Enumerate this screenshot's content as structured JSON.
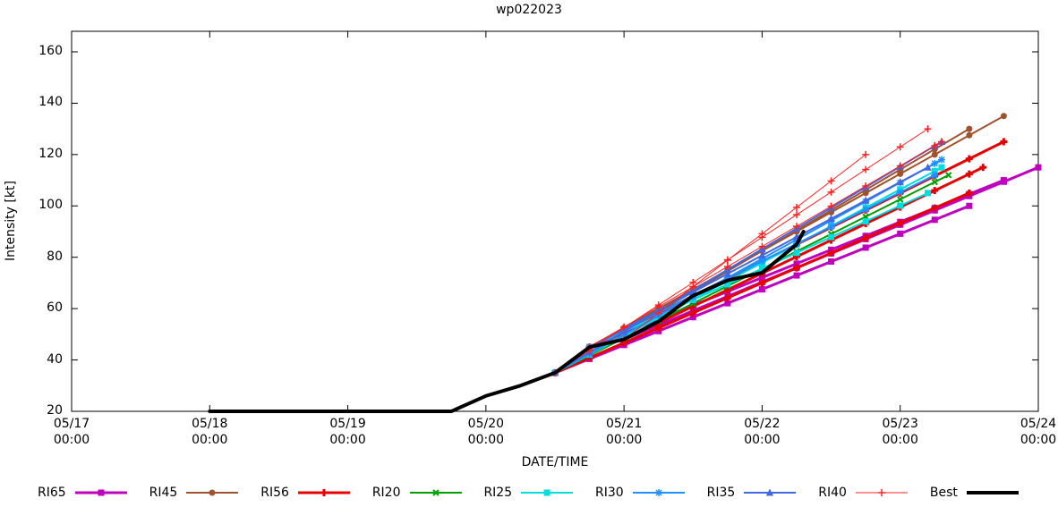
{
  "chart_data": {
    "type": "line",
    "title": "wp022023",
    "xlabel": "DATE/TIME",
    "ylabel": "Intensity [kt]",
    "ylim": [
      20,
      168
    ],
    "xlim_days": [
      "05/17 00:00",
      "05/24 00:00"
    ],
    "grid": false,
    "legend_position": "bottom",
    "marker_step_days": 0.25,
    "y_ticks": [
      20,
      40,
      60,
      80,
      100,
      120,
      140,
      160
    ],
    "x_ticks": [
      {
        "date": "05/17",
        "time": "00:00"
      },
      {
        "date": "05/18",
        "time": "00:00"
      },
      {
        "date": "05/19",
        "time": "00:00"
      },
      {
        "date": "05/20",
        "time": "00:00"
      },
      {
        "date": "05/21",
        "time": "00:00"
      },
      {
        "date": "05/22",
        "time": "00:00"
      },
      {
        "date": "05/23",
        "time": "00:00"
      },
      {
        "date": "05/24",
        "time": "00:00"
      }
    ],
    "series": [
      {
        "name": "RI65",
        "color": "#bf00bf",
        "marker": "square",
        "lw": 3,
        "segments": [
          [
            [
              3.5,
              35
            ],
            [
              6.5,
              100
            ]
          ],
          [
            [
              3.75,
              45
            ],
            [
              6.75,
              110
            ]
          ],
          [
            [
              4.0,
              48
            ],
            [
              7.0,
              115
            ]
          ]
        ]
      },
      {
        "name": "RI45",
        "color": "#a0522d",
        "marker": "circle",
        "lw": 2,
        "segments": [
          [
            [
              3.5,
              35
            ],
            [
              6.5,
              130
            ]
          ],
          [
            [
              3.75,
              45
            ],
            [
              6.75,
              135
            ]
          ]
        ]
      },
      {
        "name": "RI56",
        "color": "#e60000",
        "marker": "plus",
        "lw": 3,
        "segments": [
          [
            [
              3.5,
              35
            ],
            [
              6.5,
              105
            ]
          ],
          [
            [
              3.75,
              45
            ],
            [
              6.75,
              125
            ]
          ],
          [
            [
              4.0,
              48
            ],
            [
              6.6,
              115
            ]
          ]
        ]
      },
      {
        "name": "RI20",
        "color": "#00a000",
        "marker": "x",
        "lw": 2,
        "segments": [
          [
            [
              3.5,
              35
            ],
            [
              6.35,
              112
            ]
          ]
        ]
      },
      {
        "name": "RI25",
        "color": "#00dddd",
        "marker": "square",
        "lw": 2,
        "segments": [
          [
            [
              3.5,
              35
            ],
            [
              6.3,
              115
            ]
          ],
          [
            [
              3.75,
              45
            ],
            [
              6.2,
              105
            ]
          ]
        ]
      },
      {
        "name": "RI30",
        "color": "#1e90ff",
        "marker": "asterisk",
        "lw": 2,
        "segments": [
          [
            [
              3.5,
              35
            ],
            [
              6.3,
              118
            ]
          ],
          [
            [
              3.75,
              45
            ],
            [
              6.25,
              112
            ]
          ]
        ]
      },
      {
        "name": "RI35",
        "color": "#4169e1",
        "marker": "triangle",
        "lw": 2,
        "segments": [
          [
            [
              3.5,
              35
            ],
            [
              6.3,
              125
            ]
          ],
          [
            [
              3.75,
              45
            ],
            [
              6.2,
              115
            ]
          ]
        ]
      },
      {
        "name": "RI40",
        "color": "#ff2020",
        "marker": "plus",
        "lw": 1,
        "segments": [
          [
            [
              3.5,
              35
            ],
            [
              6.2,
              130
            ]
          ],
          [
            [
              3.75,
              45
            ],
            [
              6.3,
              125
            ]
          ],
          [
            [
              4.0,
              48
            ],
            [
              5.75,
              120
            ]
          ]
        ]
      },
      {
        "name": "Best",
        "color": "#000000",
        "marker": "none",
        "lw": 4,
        "segments": [
          [
            [
              1.0,
              20
            ],
            [
              1.25,
              20
            ],
            [
              1.5,
              20
            ],
            [
              1.75,
              20
            ],
            [
              2.0,
              20
            ],
            [
              2.25,
              20
            ],
            [
              2.5,
              20
            ],
            [
              2.75,
              20
            ],
            [
              3.0,
              26
            ],
            [
              3.25,
              30
            ],
            [
              3.5,
              35
            ],
            [
              3.75,
              45
            ],
            [
              4.0,
              48
            ],
            [
              4.25,
              55
            ],
            [
              4.5,
              65
            ],
            [
              4.75,
              71
            ],
            [
              5.0,
              74
            ],
            [
              5.25,
              85
            ],
            [
              5.3,
              90
            ]
          ]
        ]
      }
    ]
  }
}
